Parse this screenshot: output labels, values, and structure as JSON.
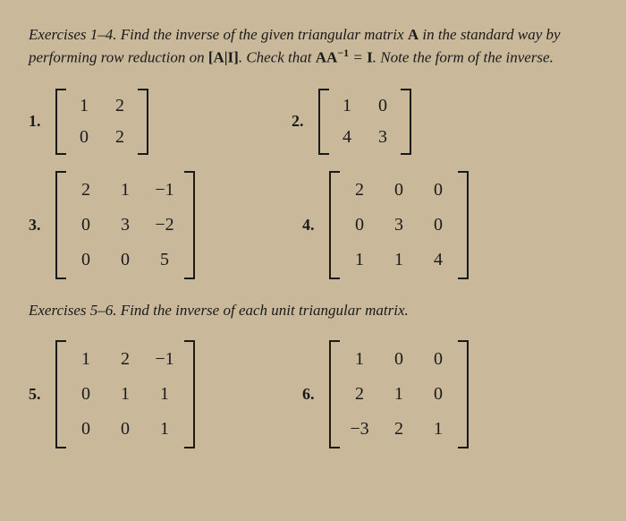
{
  "colors": {
    "background": "#c9b89a",
    "text": "#1a1a1a",
    "bracket": "#1a1a1a"
  },
  "typography": {
    "body_font": "Georgia, Times New Roman, serif",
    "instruction_fontsize": 17,
    "number_fontsize": 18,
    "matrix_fontsize": 20
  },
  "section1": {
    "heading_pre": "Exercises 1–4. Find the inverse of the given triangular matrix ",
    "bold_A": "A",
    "heading_mid1": " in the standard way by performing row reduction on ",
    "bold_AI": "[A|I]",
    "heading_mid2": ". Check that ",
    "bold_AA": "AA",
    "sup_minus1": "−1",
    "eq": " = ",
    "bold_I": "I",
    "heading_end": ". Note the form of the inverse."
  },
  "ex1": {
    "label": "1.",
    "rows": 2,
    "cols": 2,
    "c00": "1",
    "c01": "2",
    "c10": "0",
    "c11": "2"
  },
  "ex2": {
    "label": "2.",
    "rows": 2,
    "cols": 2,
    "c00": "1",
    "c01": "0",
    "c10": "4",
    "c11": "3"
  },
  "ex3": {
    "label": "3.",
    "rows": 3,
    "cols": 3,
    "c00": "2",
    "c01": "1",
    "c02": "−1",
    "c10": "0",
    "c11": "3",
    "c12": "−2",
    "c20": "0",
    "c21": "0",
    "c22": "5"
  },
  "ex4": {
    "label": "4.",
    "rows": 3,
    "cols": 3,
    "c00": "2",
    "c01": "0",
    "c02": "0",
    "c10": "0",
    "c11": "3",
    "c12": "0",
    "c20": "1",
    "c21": "1",
    "c22": "4"
  },
  "section2": {
    "text": "Exercises 5–6. Find the inverse of each unit triangular matrix."
  },
  "ex5": {
    "label": "5.",
    "rows": 3,
    "cols": 3,
    "c00": "1",
    "c01": "2",
    "c02": "−1",
    "c10": "0",
    "c11": "1",
    "c12": "1",
    "c20": "0",
    "c21": "0",
    "c22": "1"
  },
  "ex6": {
    "label": "6.",
    "rows": 3,
    "cols": 3,
    "c00": "1",
    "c01": "0",
    "c02": "0",
    "c10": "2",
    "c11": "1",
    "c12": "0",
    "c20": "−3",
    "c21": "2",
    "c22": "1"
  }
}
